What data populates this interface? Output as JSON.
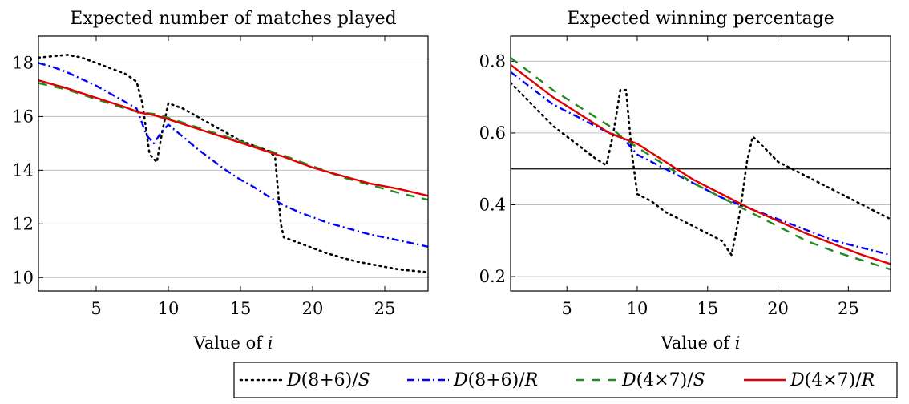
{
  "colors": {
    "black": "#000000",
    "blue": "#0000ff",
    "green": "#228b22",
    "red": "#e00000",
    "grid": "#bfbfbf"
  },
  "chart_data": [
    {
      "type": "line",
      "title": "Expected number of matches played",
      "xlabel": "Value of i",
      "ylabel": "",
      "xlim": [
        1,
        28
      ],
      "ylim": [
        9.5,
        19
      ],
      "xticks": [
        5,
        10,
        15,
        20,
        25
      ],
      "yticks": [
        10,
        12,
        14,
        16,
        18
      ],
      "grid": "horizontal",
      "series": [
        {
          "name": "D(8+6)/S",
          "style": "dotted",
          "color": "#000000",
          "x": [
            1,
            2,
            3,
            4,
            5,
            6,
            7,
            7.8,
            8.2,
            8.7,
            9.2,
            9.6,
            10,
            11,
            12,
            13,
            14,
            15,
            16,
            17,
            17.4,
            17.8,
            18,
            19,
            20,
            21,
            22,
            23,
            24,
            25,
            26,
            27,
            28
          ],
          "y": [
            18.2,
            18.25,
            18.3,
            18.2,
            18.0,
            17.8,
            17.6,
            17.3,
            16.5,
            14.6,
            14.3,
            15.5,
            16.5,
            16.3,
            16.0,
            15.7,
            15.4,
            15.1,
            14.9,
            14.7,
            14.5,
            12.0,
            11.5,
            11.3,
            11.1,
            10.9,
            10.75,
            10.6,
            10.5,
            10.4,
            10.3,
            10.25,
            10.2
          ]
        },
        {
          "name": "D(8+6)/R",
          "style": "dashdotted",
          "color": "#0000ff",
          "x": [
            1,
            2,
            3,
            4,
            5,
            6,
            7,
            7.8,
            8.5,
            9,
            9.5,
            10,
            11,
            12,
            13,
            14,
            15,
            16,
            17,
            18,
            19,
            20,
            21,
            22,
            23,
            24,
            25,
            26,
            27,
            28
          ],
          "y": [
            18.0,
            17.85,
            17.65,
            17.4,
            17.15,
            16.85,
            16.55,
            16.3,
            15.3,
            15.0,
            15.4,
            15.7,
            15.25,
            14.8,
            14.4,
            14.0,
            13.65,
            13.35,
            13.0,
            12.7,
            12.45,
            12.25,
            12.05,
            11.9,
            11.75,
            11.6,
            11.5,
            11.38,
            11.27,
            11.15
          ]
        },
        {
          "name": "D(4×7)/S",
          "style": "dashed",
          "color": "#228b22",
          "x": [
            1,
            3,
            5,
            7,
            8,
            9,
            10,
            12,
            14,
            16,
            18,
            20,
            22,
            24,
            26,
            28
          ],
          "y": [
            17.25,
            17.0,
            16.65,
            16.3,
            16.15,
            16.1,
            15.95,
            15.6,
            15.25,
            14.9,
            14.55,
            14.15,
            13.75,
            13.45,
            13.15,
            12.9
          ]
        },
        {
          "name": "D(4×7)/R",
          "style": "solid",
          "color": "#e00000",
          "x": [
            1,
            3,
            5,
            7,
            8,
            9,
            10,
            12,
            14,
            16,
            18,
            20,
            22,
            24,
            26,
            28
          ],
          "y": [
            17.35,
            17.05,
            16.7,
            16.35,
            16.15,
            16.05,
            15.9,
            15.55,
            15.2,
            14.85,
            14.5,
            14.1,
            13.8,
            13.5,
            13.3,
            13.05
          ]
        }
      ]
    },
    {
      "type": "line",
      "title": "Expected winning percentage",
      "xlabel": "Value of i",
      "ylabel": "",
      "xlim": [
        1,
        28
      ],
      "ylim": [
        0.16,
        0.87
      ],
      "xticks": [
        5,
        10,
        15,
        20,
        25
      ],
      "yticks": [
        0.2,
        0.4,
        0.6,
        0.8
      ],
      "ytick_labels": [
        "0.2",
        "0.4",
        "0.6",
        "0.8"
      ],
      "grid": "horizontal",
      "reference_line": 0.5,
      "series": [
        {
          "name": "D(8+6)/S",
          "style": "dotted",
          "color": "#000000",
          "x": [
            1,
            2,
            3,
            4,
            5,
            6,
            7,
            7.8,
            8.3,
            8.8,
            9.2,
            9.6,
            10,
            11,
            12,
            13,
            14,
            15,
            16,
            16.7,
            17.3,
            17.8,
            18.2,
            19,
            20,
            21,
            22,
            23,
            24,
            25,
            26,
            27,
            28
          ],
          "y": [
            0.74,
            0.7,
            0.66,
            0.62,
            0.59,
            0.56,
            0.53,
            0.51,
            0.6,
            0.72,
            0.72,
            0.55,
            0.43,
            0.41,
            0.38,
            0.36,
            0.34,
            0.32,
            0.3,
            0.26,
            0.38,
            0.52,
            0.59,
            0.56,
            0.52,
            0.5,
            0.48,
            0.46,
            0.44,
            0.42,
            0.4,
            0.38,
            0.36
          ]
        },
        {
          "name": "D(8+6)/R",
          "style": "dashdotted",
          "color": "#0000ff",
          "x": [
            1,
            2,
            3,
            4,
            5,
            6,
            7,
            8,
            9,
            10,
            11,
            12,
            13,
            14,
            15,
            16,
            17,
            18,
            19,
            20,
            21,
            22,
            23,
            24,
            25,
            26,
            27,
            28
          ],
          "y": [
            0.77,
            0.74,
            0.71,
            0.68,
            0.66,
            0.64,
            0.62,
            0.6,
            0.585,
            0.54,
            0.52,
            0.5,
            0.48,
            0.46,
            0.44,
            0.42,
            0.405,
            0.39,
            0.375,
            0.36,
            0.345,
            0.33,
            0.315,
            0.3,
            0.29,
            0.28,
            0.27,
            0.26
          ]
        },
        {
          "name": "D(4×7)/S",
          "style": "dashed",
          "color": "#228b22",
          "x": [
            1,
            2,
            4,
            6,
            8,
            9,
            10,
            12,
            14,
            16,
            18,
            20,
            22,
            24,
            26,
            28
          ],
          "y": [
            0.81,
            0.78,
            0.72,
            0.67,
            0.62,
            0.585,
            0.56,
            0.51,
            0.46,
            0.42,
            0.38,
            0.34,
            0.3,
            0.27,
            0.245,
            0.22
          ]
        },
        {
          "name": "D(4×7)/R",
          "style": "solid",
          "color": "#e00000",
          "x": [
            1,
            2,
            4,
            6,
            8,
            9,
            10,
            12,
            14,
            16,
            18,
            20,
            22,
            24,
            26,
            28
          ],
          "y": [
            0.79,
            0.76,
            0.7,
            0.65,
            0.6,
            0.585,
            0.57,
            0.52,
            0.47,
            0.43,
            0.39,
            0.355,
            0.32,
            0.29,
            0.26,
            0.235
          ]
        }
      ]
    }
  ],
  "legend": [
    {
      "label": "D(8+6)/S",
      "style": "dotted",
      "color": "#000000"
    },
    {
      "label": "D(8+6)/R",
      "style": "dashdotted",
      "color": "#0000ff"
    },
    {
      "label": "D(4×7)/S",
      "style": "dashed",
      "color": "#228b22"
    },
    {
      "label": "D(4×7)/R",
      "style": "solid",
      "color": "#e00000"
    }
  ]
}
